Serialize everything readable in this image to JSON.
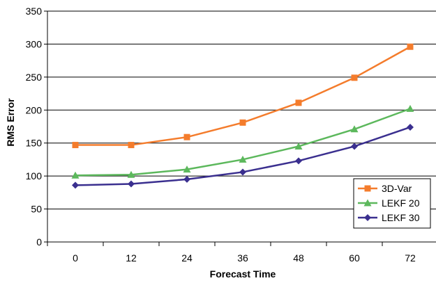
{
  "chart_data": {
    "type": "line",
    "title": "",
    "xlabel": "Forecast Time",
    "ylabel": "RMS Error",
    "x": [
      0,
      12,
      24,
      36,
      48,
      60,
      72
    ],
    "x_tick_labels": [
      "0",
      "12",
      "24",
      "36",
      "48",
      "60",
      "72"
    ],
    "y_ticks": [
      0,
      50,
      100,
      150,
      200,
      250,
      300,
      350
    ],
    "ylim": [
      0,
      350
    ],
    "grid": "horizontal",
    "legend_position": "bottom-right",
    "series": [
      {
        "name": "3D-Var",
        "color": "#f47c2c",
        "marker": "square",
        "values": [
          147,
          147,
          159,
          181,
          211,
          249,
          296
        ]
      },
      {
        "name": "LEKF 20",
        "color": "#5cb85c",
        "marker": "triangle",
        "values": [
          101,
          102,
          110,
          125,
          145,
          171,
          202
        ]
      },
      {
        "name": "LEKF 30",
        "color": "#3a2f8f",
        "marker": "diamond",
        "values": [
          86,
          88,
          95,
          106,
          123,
          145,
          174
        ]
      }
    ]
  }
}
